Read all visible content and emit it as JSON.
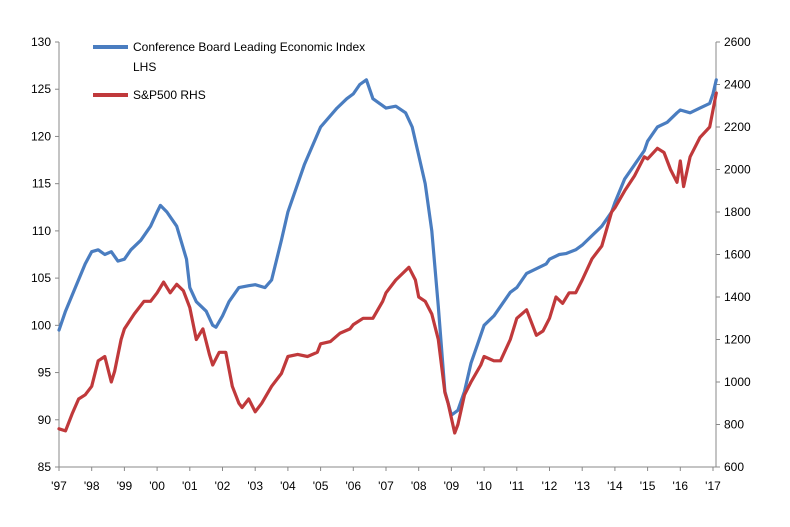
{
  "chart_data": {
    "type": "line",
    "x_tick_labels": [
      "'97",
      "'98",
      "'99",
      "'00",
      "'01",
      "'02",
      "'03",
      "'04",
      "'05",
      "'06",
      "'07",
      "'08",
      "'09",
      "'10",
      "'11",
      "'12",
      "'13",
      "'14",
      "'15",
      "'16",
      "'17"
    ],
    "y_left": {
      "ylim": [
        85,
        130
      ],
      "ticks": [
        85,
        90,
        95,
        100,
        105,
        110,
        115,
        120,
        125,
        130
      ]
    },
    "y_right": {
      "ylim": [
        600,
        2600
      ],
      "ticks": [
        600,
        800,
        1000,
        1200,
        1400,
        1600,
        1800,
        2000,
        2200,
        2400,
        2600
      ]
    },
    "grid": false,
    "legend_position": "top-left",
    "series": [
      {
        "name": "Conference Board Leading Economic Index LHS",
        "legend_line1": "Conference Board Leading Economic Index",
        "legend_line2": "LHS",
        "axis": "left",
        "color": "#4a7dc0",
        "x": [
          1997.0,
          1997.2,
          1997.5,
          1997.8,
          1998.0,
          1998.2,
          1998.4,
          1998.6,
          1998.8,
          1999.0,
          1999.2,
          1999.5,
          1999.8,
          2000.0,
          2000.1,
          2000.3,
          2000.6,
          2000.9,
          2001.0,
          2001.2,
          2001.5,
          2001.7,
          2001.8,
          2002.0,
          2002.2,
          2002.5,
          2002.8,
          2003.0,
          2003.3,
          2003.5,
          2003.8,
          2004.0,
          2004.5,
          2005.0,
          2005.5,
          2005.8,
          2006.0,
          2006.2,
          2006.4,
          2006.6,
          2006.8,
          2007.0,
          2007.3,
          2007.6,
          2007.8,
          2008.0,
          2008.2,
          2008.4,
          2008.6,
          2008.8,
          2009.0,
          2009.2,
          2009.4,
          2009.6,
          2009.8,
          2010.0,
          2010.3,
          2010.5,
          2010.8,
          2011.0,
          2011.3,
          2011.6,
          2011.9,
          2012.0,
          2012.3,
          2012.5,
          2012.8,
          2013.0,
          2013.3,
          2013.6,
          2013.9,
          2014.0,
          2014.3,
          2014.6,
          2014.9,
          2015.0,
          2015.3,
          2015.6,
          2015.9,
          2016.0,
          2016.3,
          2016.6,
          2016.9,
          2017.0,
          2017.1
        ],
        "y": [
          99.5,
          101.5,
          104,
          106.5,
          107.8,
          108,
          107.5,
          107.8,
          106.8,
          107,
          108,
          109,
          110.5,
          112,
          112.7,
          112,
          110.5,
          107,
          104,
          102.5,
          101.5,
          100,
          99.8,
          101,
          102.5,
          104,
          104.2,
          104.3,
          104,
          104.8,
          109,
          112,
          117,
          121,
          123,
          124,
          124.5,
          125.5,
          126,
          124,
          123.5,
          123,
          123.2,
          122.5,
          121,
          118,
          115,
          110,
          102,
          93,
          90.5,
          91,
          93,
          96,
          98,
          100,
          101,
          102,
          103.5,
          104,
          105.5,
          106,
          106.5,
          107,
          107.5,
          107.6,
          108,
          108.5,
          109.5,
          110.5,
          112,
          113,
          115.5,
          117,
          118.5,
          119.5,
          121,
          121.5,
          122.5,
          122.8,
          122.5,
          123,
          123.5,
          124.5,
          126
        ]
      },
      {
        "name": "S&P500 RHS",
        "legend_line1": "S&P500 RHS",
        "axis": "right",
        "color": "#c0393b",
        "x": [
          1997.0,
          1997.2,
          1997.4,
          1997.6,
          1997.8,
          1998.0,
          1998.2,
          1998.4,
          1998.6,
          1998.7,
          1998.9,
          1999.0,
          1999.3,
          1999.6,
          1999.8,
          2000.0,
          2000.2,
          2000.4,
          2000.6,
          2000.8,
          2001.0,
          2001.2,
          2001.4,
          2001.6,
          2001.7,
          2001.9,
          2002.1,
          2002.3,
          2002.5,
          2002.6,
          2002.8,
          2003.0,
          2003.2,
          2003.5,
          2003.8,
          2004.0,
          2004.3,
          2004.6,
          2004.9,
          2005.0,
          2005.3,
          2005.6,
          2005.9,
          2006.0,
          2006.3,
          2006.6,
          2006.9,
          2007.0,
          2007.3,
          2007.5,
          2007.7,
          2007.9,
          2008.0,
          2008.2,
          2008.4,
          2008.6,
          2008.8,
          2008.9,
          2009.1,
          2009.2,
          2009.4,
          2009.6,
          2009.9,
          2010.0,
          2010.3,
          2010.5,
          2010.8,
          2011.0,
          2011.3,
          2011.6,
          2011.8,
          2012.0,
          2012.2,
          2012.4,
          2012.6,
          2012.8,
          2013.0,
          2013.3,
          2013.6,
          2013.9,
          2014.0,
          2014.3,
          2014.6,
          2014.9,
          2015.0,
          2015.3,
          2015.5,
          2015.7,
          2015.9,
          2016.0,
          2016.1,
          2016.3,
          2016.6,
          2016.9,
          2017.0,
          2017.1
        ],
        "y": [
          780,
          770,
          850,
          920,
          940,
          980,
          1100,
          1120,
          1000,
          1050,
          1200,
          1250,
          1320,
          1380,
          1380,
          1420,
          1470,
          1420,
          1460,
          1430,
          1350,
          1200,
          1250,
          1130,
          1080,
          1140,
          1140,
          980,
          900,
          880,
          920,
          860,
          900,
          980,
          1040,
          1120,
          1130,
          1120,
          1140,
          1180,
          1190,
          1230,
          1250,
          1270,
          1300,
          1300,
          1380,
          1420,
          1480,
          1510,
          1540,
          1480,
          1400,
          1380,
          1320,
          1200,
          950,
          900,
          760,
          800,
          940,
          1000,
          1080,
          1120,
          1100,
          1100,
          1200,
          1300,
          1340,
          1220,
          1240,
          1300,
          1400,
          1370,
          1420,
          1420,
          1480,
          1580,
          1640,
          1800,
          1820,
          1900,
          1970,
          2060,
          2050,
          2100,
          2080,
          2000,
          1940,
          2040,
          1920,
          2060,
          2150,
          2200,
          2280,
          2360
        ]
      }
    ]
  }
}
